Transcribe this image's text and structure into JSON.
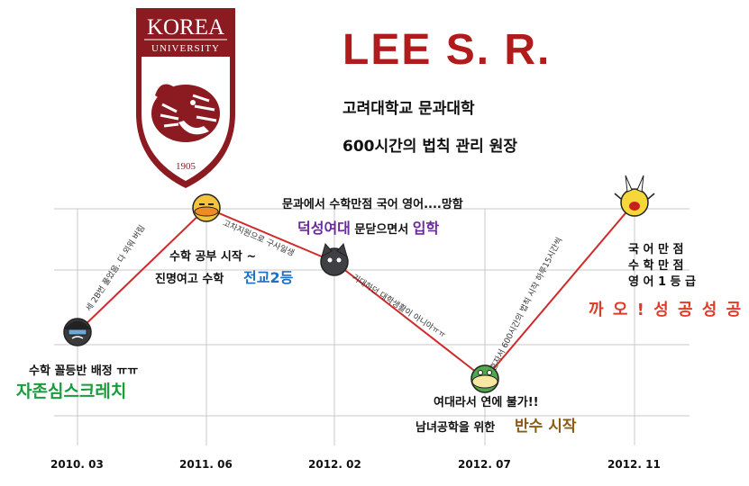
{
  "logo": {
    "top_text": "KOREA",
    "bottom_text": "UNIVERSITY",
    "year": "1905",
    "colors": {
      "shield": "#8c1a21",
      "white": "#ffffff"
    }
  },
  "header": {
    "name": "LEE S. R.",
    "line1": "고려대학교 문과대학",
    "line2": "600시간의 법칙 관리 원장"
  },
  "chart_data": {
    "type": "line",
    "categories": [
      "2010. 03",
      "2011. 06",
      "2012. 02",
      "2012. 07",
      "2012. 11"
    ],
    "x_tick_labels": [
      "2010. 03",
      "2011. 06",
      "2012. 02",
      "2012. 07",
      "2012. 11"
    ],
    "values": [
      0.28,
      0.97,
      0.67,
      0.02,
      1.0
    ],
    "ylim": [
      0,
      1
    ],
    "grid": true,
    "line_color": "#d12a2a",
    "annotations": [
      {
        "point": "2010. 03",
        "lines": [
          "수학 꼴등반 배정 ㅠㅠ"
        ],
        "highlight": "자존심스크레치",
        "highlight_color": "#1a9b3c"
      },
      {
        "point": "2011. 06",
        "lines": [
          "수학  공부  시작 ~",
          "진명여고  수학"
        ],
        "highlight": "전교2등",
        "highlight_color": "#1f6fc4"
      },
      {
        "point": "2012. 02",
        "lines": [
          "문과에서 수학만점 국어 영어....망함"
        ],
        "highlight_a": "덕성여대",
        "mid_text": " 문닫으면서 ",
        "highlight_b": "입학",
        "highlight_color": "#6a2a9e"
      },
      {
        "point": "2012. 07",
        "lines": [
          "여대라서  연에  불가!!",
          "남녀공학을  위한"
        ],
        "highlight": "반수  시작",
        "highlight_color": "#8b5a14"
      },
      {
        "point": "2012. 11",
        "lines": [
          "국 어   만 점",
          "수 학   만 점",
          "영 어 1 등 급"
        ],
        "highlight": "까 오 ! 성 공 성 공",
        "highlight_color": "#e03b28"
      }
    ],
    "segment_notes": [
      "세 2B번 풀었음. 다 외워 버림",
      "고차지원으로 구사일생",
      "기대하던 대학생활이 아니야ㅠㅠ",
      "혼자서 600시간의 법칙 시작 하루15시간씩"
    ],
    "icons": [
      "crying-boy-icon",
      "duck-icon",
      "black-cat-icon",
      "crocodile-icon",
      "cheering-rabbit-icon"
    ]
  }
}
